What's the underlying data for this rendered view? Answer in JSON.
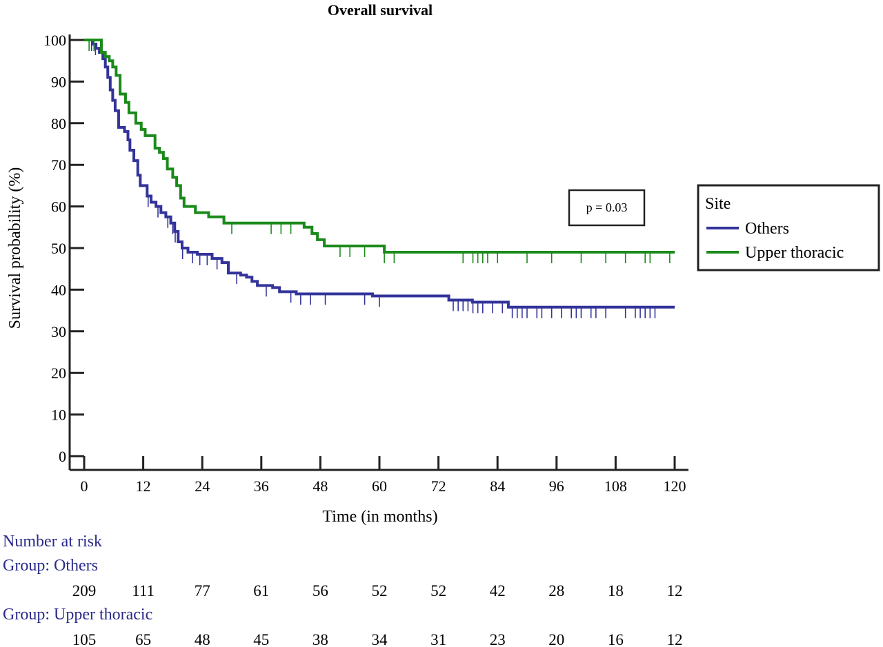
{
  "chart_data": {
    "type": "line",
    "title": "Overall survival",
    "xlabel": "Time (in months)",
    "ylabel": "Survival probability (%)",
    "xlim": [
      0,
      120
    ],
    "ylim": [
      0,
      100
    ],
    "x_ticks": [
      0,
      12,
      24,
      36,
      48,
      60,
      72,
      84,
      96,
      108,
      120
    ],
    "y_ticks": [
      0,
      10,
      20,
      30,
      40,
      50,
      60,
      70,
      80,
      90,
      100
    ],
    "grid": false,
    "legend": {
      "title": "Site",
      "position": "right",
      "entries": [
        "Others",
        "Upper thoracic"
      ]
    },
    "annotation": "p = 0.03",
    "series": [
      {
        "name": "Others",
        "color": "#33339a",
        "steps": [
          [
            0,
            100
          ],
          [
            1,
            100
          ],
          [
            1.7,
            99
          ],
          [
            2.4,
            98
          ],
          [
            3.1,
            97
          ],
          [
            3.8,
            95.5
          ],
          [
            4.3,
            93.5
          ],
          [
            4.8,
            91
          ],
          [
            5.3,
            88
          ],
          [
            5.8,
            85.5
          ],
          [
            6.3,
            83
          ],
          [
            7,
            79
          ],
          [
            8.2,
            78
          ],
          [
            8.9,
            76
          ],
          [
            9.3,
            73.5
          ],
          [
            10.1,
            71
          ],
          [
            10.9,
            67.5
          ],
          [
            11.4,
            65
          ],
          [
            12.8,
            62.5
          ],
          [
            13.6,
            61
          ],
          [
            14.6,
            60
          ],
          [
            15.6,
            58.5
          ],
          [
            16.6,
            57.5
          ],
          [
            17.6,
            56
          ],
          [
            18.4,
            54
          ],
          [
            19.1,
            51.5
          ],
          [
            19.9,
            50
          ],
          [
            21.1,
            49
          ],
          [
            23,
            48.5
          ],
          [
            24.6,
            48.5
          ],
          [
            26,
            47.5
          ],
          [
            28,
            46.5
          ],
          [
            29.3,
            44
          ],
          [
            31.8,
            43.5
          ],
          [
            33,
            43
          ],
          [
            34.1,
            42
          ],
          [
            35.2,
            41
          ],
          [
            38.3,
            40.5
          ],
          [
            39.7,
            39.5
          ],
          [
            43.1,
            39
          ],
          [
            58.6,
            38.5
          ],
          [
            74.1,
            37.5
          ],
          [
            78.9,
            37
          ],
          [
            86.2,
            35.8
          ],
          [
            120,
            35.8
          ]
        ],
        "censor_times": [
          1.5,
          2.3,
          10,
          13,
          15,
          17,
          18,
          18.5,
          20,
          22,
          23.5,
          25,
          27,
          31,
          37,
          42,
          44,
          46,
          49,
          57,
          60,
          75,
          76,
          77,
          78,
          79,
          80,
          81,
          83,
          85,
          87,
          88,
          89,
          90,
          92,
          93,
          95,
          97,
          99,
          100,
          101,
          103,
          104,
          106,
          110,
          112,
          113,
          114,
          115,
          116
        ]
      },
      {
        "name": "Upper thoracic",
        "color": "#1a8a1a",
        "steps": [
          [
            0,
            100
          ],
          [
            2.9,
            100
          ],
          [
            3.5,
            97
          ],
          [
            4.3,
            96
          ],
          [
            5.1,
            95
          ],
          [
            5.8,
            93.5
          ],
          [
            6.5,
            91.5
          ],
          [
            7.3,
            87
          ],
          [
            8.4,
            85
          ],
          [
            9.1,
            82.5
          ],
          [
            10.5,
            80
          ],
          [
            11.6,
            78.5
          ],
          [
            12.4,
            77
          ],
          [
            14.4,
            74
          ],
          [
            15.3,
            73
          ],
          [
            16.1,
            71.5
          ],
          [
            16.9,
            69
          ],
          [
            18,
            67
          ],
          [
            18.8,
            65
          ],
          [
            19.6,
            62
          ],
          [
            20.3,
            60
          ],
          [
            22.6,
            58.5
          ],
          [
            25.3,
            57.5
          ],
          [
            28.4,
            56
          ],
          [
            44.7,
            55
          ],
          [
            46.3,
            53.5
          ],
          [
            47.4,
            52
          ],
          [
            48.8,
            50.5
          ],
          [
            61,
            49
          ],
          [
            120,
            49
          ]
        ],
        "censor_times": [
          1,
          2,
          30,
          38,
          40,
          42,
          52,
          54,
          57,
          61,
          63,
          77,
          79,
          80,
          81,
          82,
          84,
          90,
          95,
          101,
          106,
          110,
          114,
          115,
          119
        ]
      }
    ],
    "risk_table": {
      "heading": "Number at risk",
      "groups": [
        {
          "label": "Group: Others",
          "counts": [
            "209",
            "111",
            "77",
            "61",
            "56",
            "52",
            "52",
            "42",
            "28",
            "18",
            "12"
          ]
        },
        {
          "label": "Group: Upper thoracic",
          "counts": [
            "105",
            "65",
            "48",
            "45",
            "38",
            "34",
            "31",
            "23",
            "20",
            "16",
            "12"
          ]
        }
      ]
    }
  }
}
